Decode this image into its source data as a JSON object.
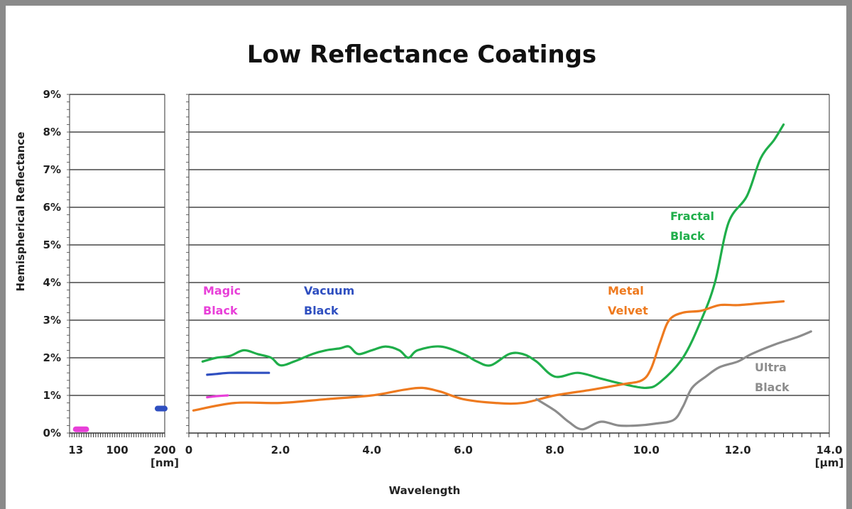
{
  "chart_data": {
    "type": "line",
    "title": "Low Reflectance Coatings",
    "ylabel": "Hemispherical Reflectance",
    "xlabel": "Wavelength",
    "ylim": [
      0,
      9
    ],
    "y_ticks": [
      "0%",
      "1%",
      "2%",
      "3%",
      "4%",
      "5%",
      "6%",
      "7%",
      "8%",
      "9%"
    ],
    "grid": "horizontal",
    "panels": [
      {
        "id": "nm",
        "unit": "[nm]",
        "xlim": [
          0,
          200
        ],
        "x_tick_values": [
          13,
          100,
          200
        ],
        "x_tick_labels": [
          "13",
          "100",
          "200"
        ]
      },
      {
        "id": "um",
        "unit": "[µm]",
        "xlim": [
          0,
          14
        ],
        "x_tick_values": [
          0,
          2,
          4,
          6,
          8,
          10,
          12,
          14
        ],
        "x_tick_labels": [
          "0",
          "2.0",
          "4.0",
          "6.0",
          "8.0",
          "10.0",
          "12.0",
          "14.0"
        ]
      }
    ],
    "series": [
      {
        "name": "Magic Black",
        "label_lines": [
          "Magic",
          "Black"
        ],
        "color": "#e83fd8",
        "segments": [
          {
            "panel": "nm",
            "points": [
              [
                13,
                0.1
              ],
              [
                35,
                0.1
              ]
            ]
          },
          {
            "panel": "um",
            "points": [
              [
                0.4,
                0.95
              ],
              [
                0.6,
                0.98
              ],
              [
                0.85,
                1.0
              ]
            ]
          }
        ]
      },
      {
        "name": "Vacuum Black",
        "label_lines": [
          "Vacuum",
          "Black"
        ],
        "color": "#2f4fc0",
        "segments": [
          {
            "panel": "nm",
            "points": [
              [
                185,
                0.65
              ],
              [
                200,
                0.65
              ]
            ]
          },
          {
            "panel": "um",
            "points": [
              [
                0.4,
                1.55
              ],
              [
                0.6,
                1.57
              ],
              [
                0.9,
                1.6
              ],
              [
                1.4,
                1.6
              ],
              [
                1.75,
                1.6
              ]
            ]
          }
        ]
      },
      {
        "name": "Fractal Black",
        "label_lines": [
          "Fractal",
          "Black"
        ],
        "color": "#1fae4a",
        "segments": [
          {
            "panel": "um",
            "points": [
              [
                0.3,
                1.9
              ],
              [
                0.6,
                2.0
              ],
              [
                0.9,
                2.05
              ],
              [
                1.2,
                2.2
              ],
              [
                1.5,
                2.1
              ],
              [
                1.8,
                2.0
              ],
              [
                2.0,
                1.8
              ],
              [
                2.3,
                1.9
              ],
              [
                2.7,
                2.1
              ],
              [
                3.0,
                2.2
              ],
              [
                3.3,
                2.25
              ],
              [
                3.5,
                2.3
              ],
              [
                3.7,
                2.1
              ],
              [
                4.0,
                2.2
              ],
              [
                4.3,
                2.3
              ],
              [
                4.6,
                2.2
              ],
              [
                4.8,
                2.0
              ],
              [
                5.0,
                2.2
              ],
              [
                5.5,
                2.3
              ],
              [
                6.0,
                2.1
              ],
              [
                6.3,
                1.9
              ],
              [
                6.6,
                1.8
              ],
              [
                7.0,
                2.1
              ],
              [
                7.3,
                2.1
              ],
              [
                7.6,
                1.9
              ],
              [
                8.0,
                1.5
              ],
              [
                8.5,
                1.6
              ],
              [
                9.0,
                1.45
              ],
              [
                9.5,
                1.3
              ],
              [
                10.0,
                1.2
              ],
              [
                10.3,
                1.35
              ],
              [
                10.8,
                2.0
              ],
              [
                11.2,
                3.0
              ],
              [
                11.5,
                4.0
              ],
              [
                11.8,
                5.6
              ],
              [
                12.2,
                6.3
              ],
              [
                12.5,
                7.3
              ],
              [
                12.8,
                7.8
              ],
              [
                13.0,
                8.2
              ]
            ]
          }
        ]
      },
      {
        "name": "Metal Velvet",
        "label_lines": [
          "Metal",
          "Velvet"
        ],
        "color": "#ee7a1f",
        "segments": [
          {
            "panel": "um",
            "points": [
              [
                0.1,
                0.6
              ],
              [
                1.0,
                0.8
              ],
              [
                2.0,
                0.8
              ],
              [
                3.0,
                0.9
              ],
              [
                4.0,
                1.0
              ],
              [
                4.7,
                1.15
              ],
              [
                5.1,
                1.2
              ],
              [
                5.5,
                1.1
              ],
              [
                6.0,
                0.9
              ],
              [
                6.7,
                0.8
              ],
              [
                7.3,
                0.8
              ],
              [
                8.0,
                1.0
              ],
              [
                8.8,
                1.15
              ],
              [
                9.5,
                1.3
              ],
              [
                9.9,
                1.4
              ],
              [
                10.1,
                1.7
              ],
              [
                10.3,
                2.4
              ],
              [
                10.5,
                3.0
              ],
              [
                10.8,
                3.2
              ],
              [
                11.2,
                3.25
              ],
              [
                11.6,
                3.4
              ],
              [
                12.0,
                3.4
              ],
              [
                12.5,
                3.45
              ],
              [
                13.0,
                3.5
              ]
            ]
          }
        ]
      },
      {
        "name": "Ultra Black",
        "label_lines": [
          "Ultra",
          "Black"
        ],
        "color": "#8c8c8c",
        "segments": [
          {
            "panel": "um",
            "points": [
              [
                7.6,
                0.9
              ],
              [
                8.0,
                0.6
              ],
              [
                8.3,
                0.3
              ],
              [
                8.6,
                0.1
              ],
              [
                9.0,
                0.3
              ],
              [
                9.4,
                0.2
              ],
              [
                9.8,
                0.2
              ],
              [
                10.2,
                0.25
              ],
              [
                10.6,
                0.35
              ],
              [
                10.8,
                0.7
              ],
              [
                11.0,
                1.2
              ],
              [
                11.3,
                1.5
              ],
              [
                11.6,
                1.75
              ],
              [
                12.0,
                1.9
              ],
              [
                12.3,
                2.1
              ],
              [
                12.8,
                2.35
              ],
              [
                13.3,
                2.55
              ],
              [
                13.6,
                2.7
              ]
            ]
          }
        ]
      }
    ]
  }
}
